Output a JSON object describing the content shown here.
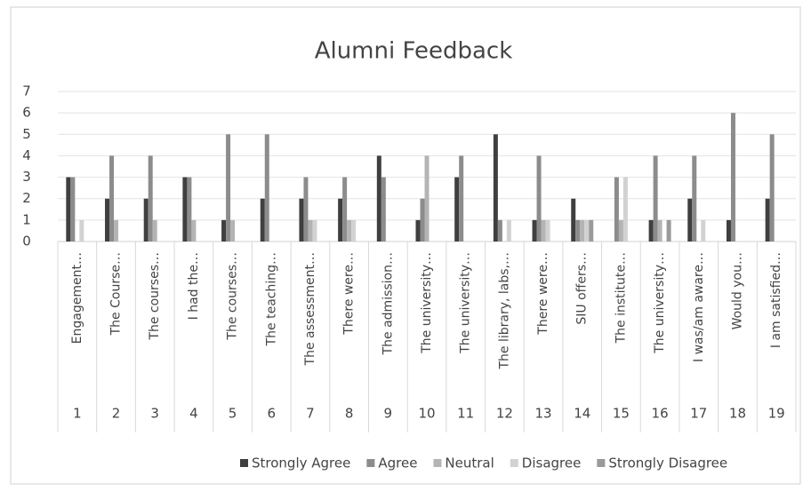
{
  "chart_data": {
    "type": "bar",
    "title": "Alumni Feedback",
    "categories": [
      "1",
      "2",
      "3",
      "4",
      "5",
      "6",
      "7",
      "8",
      "9",
      "10",
      "11",
      "12",
      "13",
      "14",
      "15",
      "16",
      "17",
      "18",
      "19"
    ],
    "category_labels": [
      "Engagement…",
      "The Course…",
      "The courses…",
      "I had the…",
      "The courses…",
      "The teaching…",
      "The assessment…",
      "There were…",
      "The admission…",
      "The university…",
      "The university…",
      "The library, labs,…",
      "There were…",
      "SIU offers…",
      "The institute…",
      "The university…",
      "I was/am aware…",
      "Would you…",
      "I am satisfied…"
    ],
    "series": [
      {
        "name": "Strongly Agree",
        "color": "#3f3f3f",
        "values": [
          3,
          2,
          2,
          3,
          1,
          2,
          2,
          2,
          4,
          1,
          3,
          5,
          1,
          2,
          0,
          1,
          2,
          1,
          2
        ]
      },
      {
        "name": "Agree",
        "color": "#8c8c8c",
        "values": [
          3,
          4,
          4,
          3,
          5,
          5,
          3,
          3,
          3,
          2,
          4,
          1,
          4,
          1,
          3,
          4,
          4,
          6,
          5
        ]
      },
      {
        "name": "Neutral",
        "color": "#b4b4b4",
        "values": [
          0,
          1,
          1,
          1,
          1,
          0,
          1,
          1,
          0,
          4,
          0,
          0,
          1,
          1,
          1,
          1,
          0,
          0,
          0
        ]
      },
      {
        "name": "Disagree",
        "color": "#d2d2d2",
        "values": [
          1,
          0,
          0,
          0,
          0,
          0,
          1,
          1,
          0,
          0,
          0,
          1,
          1,
          1,
          3,
          0,
          1,
          0,
          0
        ]
      },
      {
        "name": "Strongly Disagree",
        "color": "#9a9a9a",
        "values": [
          0,
          0,
          0,
          0,
          0,
          0,
          0,
          0,
          0,
          0,
          0,
          0,
          0,
          1,
          0,
          1,
          0,
          0,
          0
        ]
      }
    ],
    "ylim": [
      0,
      7
    ],
    "yticks": [
      0,
      1,
      2,
      3,
      4,
      5,
      6,
      7
    ],
    "grid": true
  }
}
